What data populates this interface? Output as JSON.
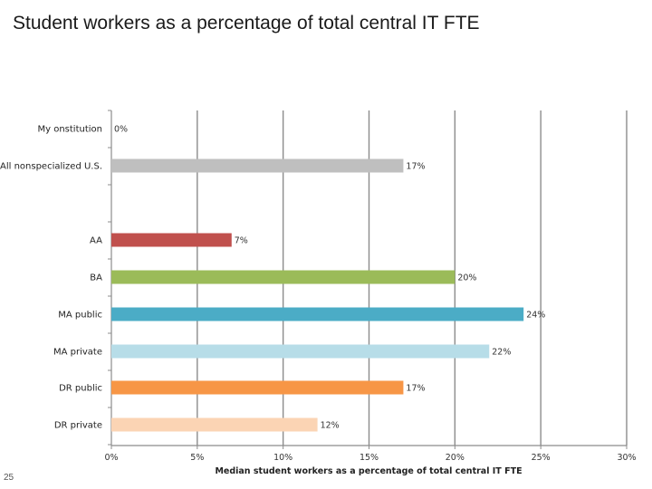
{
  "title": "Student workers as a percentage of total central IT FTE",
  "page_number": "25",
  "chart_data": {
    "type": "bar",
    "orientation": "horizontal",
    "categories": [
      "My onstitution",
      "All nonspecialized U.S.",
      "AA",
      "BA",
      "MA public",
      "MA private",
      "DR public",
      "DR private"
    ],
    "values": [
      0,
      17,
      7,
      20,
      24,
      22,
      17,
      12
    ],
    "data_labels": [
      "0%",
      "17%",
      "7%",
      "20%",
      "24%",
      "22%",
      "17%",
      "12%"
    ],
    "colors": [
      "#4472c4",
      "#bfbfbf",
      "#c0504d",
      "#9bbb59",
      "#4bacc6",
      "#b7dde8",
      "#f79646",
      "#fbd4b4"
    ],
    "xlabel": "Median student workers as a percentage of total central IT FTE",
    "ylabel": "",
    "xlim": [
      0,
      30
    ],
    "x_ticks": [
      0,
      5,
      10,
      15,
      20,
      25,
      30
    ],
    "x_tick_labels": [
      "0%",
      "5%",
      "10%",
      "15%",
      "20%",
      "25%",
      "30%"
    ],
    "grid": true
  }
}
